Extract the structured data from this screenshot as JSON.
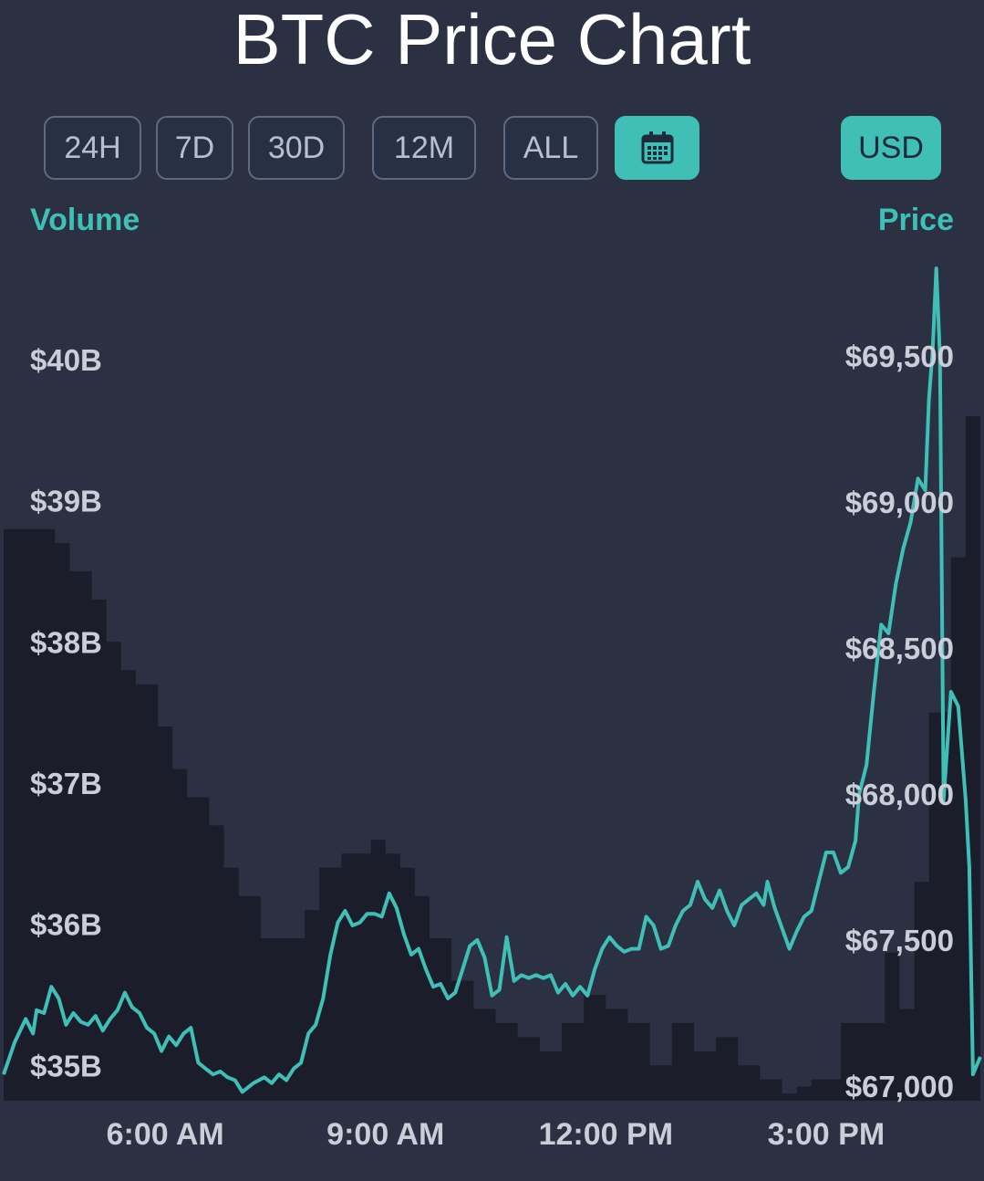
{
  "title": "BTC Price Chart",
  "range_buttons": [
    {
      "label": "24H",
      "active": false
    },
    {
      "label": "7D",
      "active": false
    },
    {
      "label": "30D",
      "active": false
    },
    {
      "label": "12M",
      "active": false
    },
    {
      "label": "ALL",
      "active": false
    }
  ],
  "calendar_button": {
    "icon": "calendar-icon",
    "active": true
  },
  "currency_button": {
    "label": "USD",
    "active": true
  },
  "colors": {
    "accent": "#3fbfb6",
    "background": "#2b3142",
    "volume_fill": "#1b1e2a"
  },
  "chart_data": {
    "type": "line",
    "left_axis_label": "Volume",
    "right_axis_label": "Price",
    "volume_axis": {
      "ticks": [
        "$35B",
        "$36B",
        "$37B",
        "$38B",
        "$39B",
        "$40B"
      ],
      "values": [
        35,
        36,
        37,
        38,
        39,
        40
      ],
      "unit": "billion USD"
    },
    "price_axis": {
      "ticks": [
        "$67,000",
        "$67,500",
        "$68,000",
        "$68,500",
        "$69,000",
        "$69,500"
      ],
      "values": [
        67000,
        67500,
        68000,
        68500,
        69000,
        69500
      ]
    },
    "x_ticks": [
      {
        "label": "6:00 AM",
        "hour": 6
      },
      {
        "label": "9:00 AM",
        "hour": 9
      },
      {
        "label": "12:00 PM",
        "hour": 12
      },
      {
        "label": "3:00 PM",
        "hour": 15
      }
    ],
    "x_range_hours": [
      3.8,
      17.1
    ],
    "volume_ylim": [
      34.75,
      40.75
    ],
    "price_ylim": [
      66950,
      69850
    ],
    "volume_series": {
      "name": "Volume",
      "points": [
        [
          3.8,
          38.8
        ],
        [
          4.1,
          38.8
        ],
        [
          4.3,
          38.8
        ],
        [
          4.5,
          38.7
        ],
        [
          4.7,
          38.5
        ],
        [
          5.0,
          38.3
        ],
        [
          5.2,
          38.0
        ],
        [
          5.4,
          37.8
        ],
        [
          5.6,
          37.7
        ],
        [
          5.9,
          37.4
        ],
        [
          6.1,
          37.1
        ],
        [
          6.3,
          36.9
        ],
        [
          6.6,
          36.7
        ],
        [
          6.8,
          36.4
        ],
        [
          7.0,
          36.2
        ],
        [
          7.3,
          35.9
        ],
        [
          7.5,
          35.9
        ],
        [
          7.8,
          35.9
        ],
        [
          7.9,
          36.1
        ],
        [
          8.1,
          36.4
        ],
        [
          8.4,
          36.5
        ],
        [
          8.6,
          36.5
        ],
        [
          8.8,
          36.6
        ],
        [
          9.0,
          36.5
        ],
        [
          9.2,
          36.4
        ],
        [
          9.4,
          36.2
        ],
        [
          9.6,
          35.9
        ],
        [
          9.9,
          35.6
        ],
        [
          10.2,
          35.4
        ],
        [
          10.5,
          35.3
        ],
        [
          10.8,
          35.2
        ],
        [
          11.1,
          35.1
        ],
        [
          11.4,
          35.3
        ],
        [
          11.7,
          35.5
        ],
        [
          12.0,
          35.4
        ],
        [
          12.3,
          35.3
        ],
        [
          12.6,
          35.0
        ],
        [
          12.9,
          35.3
        ],
        [
          13.2,
          35.1
        ],
        [
          13.5,
          35.2
        ],
        [
          13.8,
          35.0
        ],
        [
          14.1,
          34.9
        ],
        [
          14.4,
          34.8
        ],
        [
          14.6,
          34.85
        ],
        [
          14.8,
          34.9
        ],
        [
          15.0,
          34.9
        ],
        [
          15.2,
          35.3
        ],
        [
          15.5,
          35.3
        ],
        [
          15.8,
          35.8
        ],
        [
          16.0,
          35.4
        ],
        [
          16.2,
          36.3
        ],
        [
          16.4,
          37.5
        ],
        [
          16.7,
          38.6
        ],
        [
          16.9,
          39.6
        ],
        [
          17.1,
          39.6
        ]
      ]
    },
    "price_series": {
      "name": "Price",
      "points": [
        [
          3.8,
          67040
        ],
        [
          3.95,
          67150
        ],
        [
          4.1,
          67230
        ],
        [
          4.2,
          67180
        ],
        [
          4.25,
          67260
        ],
        [
          4.35,
          67250
        ],
        [
          4.45,
          67340
        ],
        [
          4.55,
          67300
        ],
        [
          4.65,
          67210
        ],
        [
          4.75,
          67250
        ],
        [
          4.85,
          67220
        ],
        [
          4.95,
          67210
        ],
        [
          5.05,
          67240
        ],
        [
          5.15,
          67190
        ],
        [
          5.25,
          67230
        ],
        [
          5.35,
          67260
        ],
        [
          5.45,
          67320
        ],
        [
          5.55,
          67270
        ],
        [
          5.65,
          67250
        ],
        [
          5.75,
          67200
        ],
        [
          5.85,
          67180
        ],
        [
          5.95,
          67120
        ],
        [
          6.05,
          67170
        ],
        [
          6.15,
          67140
        ],
        [
          6.25,
          67180
        ],
        [
          6.35,
          67200
        ],
        [
          6.45,
          67080
        ],
        [
          6.55,
          67060
        ],
        [
          6.65,
          67040
        ],
        [
          6.75,
          67050
        ],
        [
          6.85,
          67030
        ],
        [
          6.95,
          67020
        ],
        [
          7.05,
          66980
        ],
        [
          7.2,
          67010
        ],
        [
          7.35,
          67030
        ],
        [
          7.45,
          67010
        ],
        [
          7.55,
          67040
        ],
        [
          7.65,
          67020
        ],
        [
          7.75,
          67060
        ],
        [
          7.85,
          67080
        ],
        [
          7.95,
          67180
        ],
        [
          8.05,
          67210
        ],
        [
          8.15,
          67300
        ],
        [
          8.25,
          67450
        ],
        [
          8.35,
          67560
        ],
        [
          8.45,
          67600
        ],
        [
          8.55,
          67550
        ],
        [
          8.65,
          67560
        ],
        [
          8.75,
          67590
        ],
        [
          8.85,
          67590
        ],
        [
          8.95,
          67580
        ],
        [
          9.05,
          67660
        ],
        [
          9.15,
          67610
        ],
        [
          9.25,
          67520
        ],
        [
          9.35,
          67450
        ],
        [
          9.45,
          67470
        ],
        [
          9.55,
          67400
        ],
        [
          9.65,
          67340
        ],
        [
          9.75,
          67350
        ],
        [
          9.85,
          67300
        ],
        [
          9.95,
          67320
        ],
        [
          10.05,
          67400
        ],
        [
          10.15,
          67480
        ],
        [
          10.25,
          67500
        ],
        [
          10.35,
          67440
        ],
        [
          10.45,
          67310
        ],
        [
          10.55,
          67330
        ],
        [
          10.65,
          67510
        ],
        [
          10.75,
          67360
        ],
        [
          10.85,
          67380
        ],
        [
          10.95,
          67370
        ],
        [
          11.05,
          67380
        ],
        [
          11.15,
          67370
        ],
        [
          11.25,
          67380
        ],
        [
          11.35,
          67320
        ],
        [
          11.45,
          67350
        ],
        [
          11.55,
          67310
        ],
        [
          11.65,
          67340
        ],
        [
          11.75,
          67310
        ],
        [
          11.85,
          67400
        ],
        [
          11.95,
          67470
        ],
        [
          12.05,
          67510
        ],
        [
          12.15,
          67480
        ],
        [
          12.25,
          67460
        ],
        [
          12.35,
          67470
        ],
        [
          12.45,
          67470
        ],
        [
          12.55,
          67580
        ],
        [
          12.65,
          67550
        ],
        [
          12.75,
          67470
        ],
        [
          12.85,
          67480
        ],
        [
          12.95,
          67550
        ],
        [
          13.05,
          67600
        ],
        [
          13.15,
          67620
        ],
        [
          13.25,
          67700
        ],
        [
          13.35,
          67640
        ],
        [
          13.45,
          67610
        ],
        [
          13.55,
          67670
        ],
        [
          13.65,
          67600
        ],
        [
          13.75,
          67550
        ],
        [
          13.85,
          67620
        ],
        [
          13.95,
          67640
        ],
        [
          14.05,
          67660
        ],
        [
          14.15,
          67620
        ],
        [
          14.2,
          67700
        ],
        [
          14.3,
          67610
        ],
        [
          14.4,
          67540
        ],
        [
          14.5,
          67470
        ],
        [
          14.6,
          67530
        ],
        [
          14.7,
          67580
        ],
        [
          14.8,
          67600
        ],
        [
          14.9,
          67700
        ],
        [
          15.0,
          67800
        ],
        [
          15.1,
          67800
        ],
        [
          15.2,
          67730
        ],
        [
          15.3,
          67750
        ],
        [
          15.4,
          67840
        ],
        [
          15.45,
          68000
        ],
        [
          15.55,
          68100
        ],
        [
          15.65,
          68350
        ],
        [
          15.75,
          68580
        ],
        [
          15.85,
          68550
        ],
        [
          15.95,
          68720
        ],
        [
          16.05,
          68840
        ],
        [
          16.15,
          68930
        ],
        [
          16.25,
          69080
        ],
        [
          16.35,
          69040
        ],
        [
          16.4,
          69350
        ],
        [
          16.45,
          69520
        ],
        [
          16.5,
          69800
        ],
        [
          16.55,
          69500
        ],
        [
          16.6,
          67980
        ],
        [
          16.7,
          68350
        ],
        [
          16.8,
          68300
        ],
        [
          16.9,
          67980
        ],
        [
          16.95,
          67750
        ],
        [
          17.0,
          67040
        ],
        [
          17.1,
          67100
        ]
      ]
    }
  }
}
